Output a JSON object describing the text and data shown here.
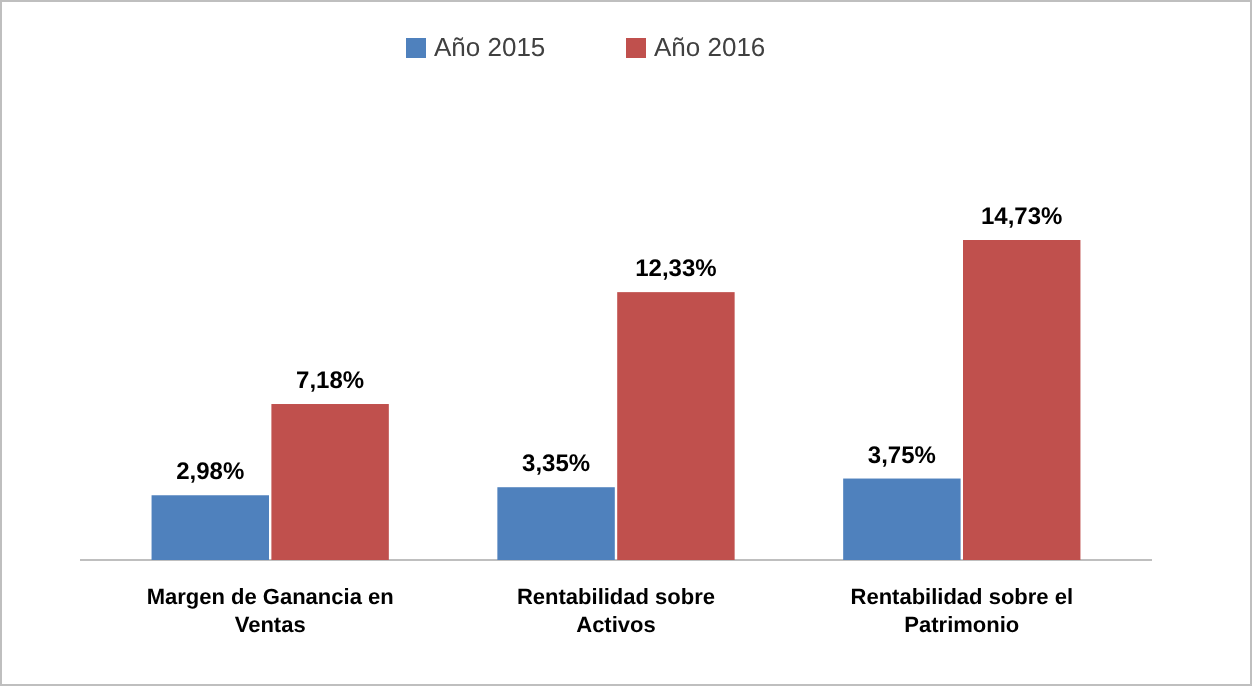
{
  "chart_data": {
    "type": "bar",
    "categories": [
      "Margen de Ganancia en Ventas",
      "Rentabilidad sobre Activos",
      "Rentabilidad sobre el Patrimonio"
    ],
    "series": [
      {
        "name": "Año 2015",
        "color": "#4f81bd",
        "values": [
          2.98,
          3.35,
          3.75
        ],
        "value_labels": [
          "2,98%",
          "3,35%",
          "3,75%"
        ]
      },
      {
        "name": "Año 2016",
        "color": "#c0504d",
        "values": [
          7.18,
          12.33,
          14.73
        ],
        "value_labels": [
          "7,18%",
          "12,33%",
          "14,73%"
        ]
      }
    ],
    "legend": "top"
  }
}
